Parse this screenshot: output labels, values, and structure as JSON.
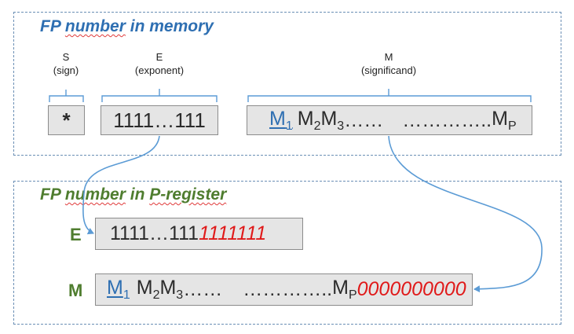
{
  "memory_panel": {
    "title_prefix": "FP ",
    "title_word": "number",
    "title_suffix": " in memory",
    "title_color": "#2e6fb2",
    "fields": {
      "s": {
        "name": "S",
        "desc": "(sign)",
        "value": "*"
      },
      "e": {
        "name": "E",
        "desc": "(exponent)",
        "value": "1111…111"
      },
      "m": {
        "name": "M",
        "desc": "(significand)",
        "m1_base": "M",
        "m1_sub": "1",
        "m2_base": "M",
        "m2_sub": "2",
        "m3_base": "M",
        "m3_sub": "3",
        "mid": "……",
        "dots": "…………..",
        "mp_base": "M",
        "mp_sub": "P"
      }
    }
  },
  "register_panel": {
    "title_prefix": "FP ",
    "title_word": "number",
    "title_mid": " in ",
    "title_word2": "P-register",
    "title_color": "#4f7d2f",
    "e_row": {
      "label": "E",
      "value": "1111…111",
      "pad": "1111111"
    },
    "m_row": {
      "label": "M",
      "m1_base": "M",
      "m1_sub": "1",
      "m2_base": "M",
      "m2_sub": "2",
      "m3_base": "M",
      "m3_sub": "3",
      "mid": "……",
      "dots": "…………..",
      "mp_base": "M",
      "mp_sub": "P",
      "pad": "0000000000"
    }
  },
  "colors": {
    "panel_border": "#6b8fb5",
    "box_fill": "#e5e5e5",
    "pad_text": "#e01a1a",
    "arrow": "#5b9bd5"
  }
}
